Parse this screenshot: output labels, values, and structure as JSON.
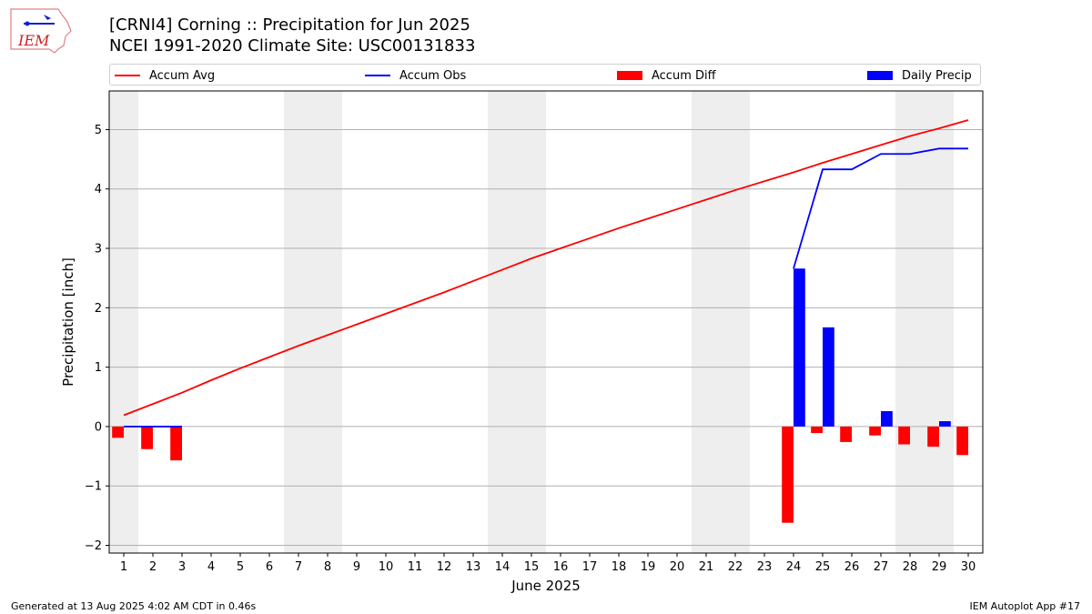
{
  "header": {
    "title_line1": "[CRNI4] Corning :: Precipitation for Jun 2025",
    "title_line2": "NCEI 1991-2020 Climate Site: USC00131833"
  },
  "logo": {
    "text": "IEM"
  },
  "footer": {
    "left": "Generated at 13 Aug 2025 4:02 AM CDT in 0.46s",
    "right": "IEM Autoplot App #17"
  },
  "legend": [
    {
      "label": "Accum Avg",
      "color": "#ff0000",
      "kind": "line"
    },
    {
      "label": "Accum Obs",
      "color": "#0000ff",
      "kind": "line"
    },
    {
      "label": "Accum Diff",
      "color": "#ff0000",
      "kind": "box"
    },
    {
      "label": "Daily Precip",
      "color": "#0000ff",
      "kind": "box"
    }
  ],
  "chart_data": {
    "type": "bar",
    "xlabel": "June 2025",
    "ylabel": "Precipitation [inch]",
    "xlim": [
      0.5,
      30.5
    ],
    "ylim": [
      -2.13,
      5.65
    ],
    "x": [
      1,
      2,
      3,
      4,
      5,
      6,
      7,
      8,
      9,
      10,
      11,
      12,
      13,
      14,
      15,
      16,
      17,
      18,
      19,
      20,
      21,
      22,
      23,
      24,
      25,
      26,
      27,
      28,
      29,
      30
    ],
    "yticks": [
      -2,
      -1,
      0,
      1,
      2,
      3,
      4,
      5
    ],
    "ytick_labels": [
      "−2",
      "−1",
      "0",
      "1",
      "2",
      "3",
      "4",
      "5"
    ],
    "weekend_shading": [
      [
        0.5,
        1.5
      ],
      [
        6.5,
        8.5
      ],
      [
        13.5,
        15.5
      ],
      [
        20.5,
        22.5
      ],
      [
        27.5,
        29.5
      ]
    ],
    "series": [
      {
        "name": "Accum Avg",
        "kind": "line",
        "color": "#ff0000",
        "values": [
          0.19,
          0.38,
          0.57,
          0.78,
          0.98,
          1.17,
          1.36,
          1.54,
          1.72,
          1.9,
          2.08,
          2.26,
          2.45,
          2.64,
          2.83,
          3.0,
          3.17,
          3.34,
          3.5,
          3.66,
          3.82,
          3.98,
          4.13,
          4.28,
          4.44,
          4.59,
          4.74,
          4.89,
          5.02,
          5.16
        ]
      },
      {
        "name": "Accum Obs",
        "kind": "line",
        "color": "#0000ff",
        "points": [
          [
            1,
            0.0
          ],
          [
            2,
            0.0
          ],
          [
            3,
            0.0
          ],
          [
            24,
            2.66
          ],
          [
            25,
            4.33
          ],
          [
            26,
            4.33
          ],
          [
            27,
            4.59
          ],
          [
            28,
            4.59
          ],
          [
            29,
            4.68
          ],
          [
            30,
            4.68
          ]
        ]
      },
      {
        "name": "Accum Diff",
        "kind": "bar",
        "color": "#ff0000",
        "points": [
          [
            1,
            -0.19
          ],
          [
            2,
            -0.38
          ],
          [
            3,
            -0.57
          ],
          [
            24,
            -1.62
          ],
          [
            25,
            -0.11
          ],
          [
            26,
            -0.26
          ],
          [
            27,
            -0.15
          ],
          [
            28,
            -0.3
          ],
          [
            29,
            -0.34
          ],
          [
            30,
            -0.48
          ]
        ]
      },
      {
        "name": "Daily Precip",
        "kind": "bar",
        "color": "#0000ff",
        "points": [
          [
            24,
            2.66
          ],
          [
            25,
            1.67
          ],
          [
            27,
            0.26
          ],
          [
            29,
            0.09
          ]
        ]
      }
    ]
  }
}
